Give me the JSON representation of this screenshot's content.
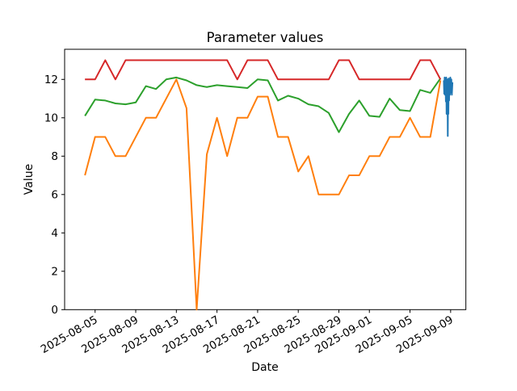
{
  "chart_data": {
    "type": "line",
    "title": "Parameter values",
    "xlabel": "Date",
    "ylabel": "Value",
    "grid": false,
    "legend": "none",
    "background": "#ffffff",
    "spine_color": "#000000",
    "dates": [
      "2025-08-04",
      "2025-08-05",
      "2025-08-06",
      "2025-08-07",
      "2025-08-08",
      "2025-08-09",
      "2025-08-10",
      "2025-08-11",
      "2025-08-12",
      "2025-08-13",
      "2025-08-14",
      "2025-08-15",
      "2025-08-16",
      "2025-08-17",
      "2025-08-18",
      "2025-08-19",
      "2025-08-20",
      "2025-08-21",
      "2025-08-22",
      "2025-08-23",
      "2025-08-24",
      "2025-08-25",
      "2025-08-26",
      "2025-08-27",
      "2025-08-28",
      "2025-08-29",
      "2025-08-30",
      "2025-08-31",
      "2025-09-01",
      "2025-09-02",
      "2025-09-03",
      "2025-09-04",
      "2025-09-05",
      "2025-09-06",
      "2025-09-07",
      "2025-09-08"
    ],
    "series": [
      {
        "name": "green-series",
        "color": "#2ca02c",
        "values": [
          10.1,
          10.95,
          10.9,
          10.75,
          10.7,
          10.8,
          11.65,
          11.5,
          12.0,
          12.1,
          11.95,
          11.7,
          11.6,
          11.7,
          11.65,
          11.6,
          11.55,
          12.0,
          11.95,
          10.9,
          11.15,
          11.0,
          10.7,
          10.6,
          10.25,
          9.25,
          10.2,
          10.9,
          10.1,
          10.05,
          11.0,
          10.4,
          10.35,
          11.45,
          11.3,
          12.05
        ]
      },
      {
        "name": "orange-series",
        "color": "#ff7f0e",
        "values": [
          7.0,
          9.0,
          9.0,
          8.0,
          8.0,
          9.0,
          10.0,
          10.0,
          11.0,
          12.0,
          10.5,
          0.0,
          8.1,
          10.0,
          8.0,
          10.0,
          10.0,
          11.1,
          11.1,
          9.0,
          9.0,
          7.2,
          8.0,
          6.0,
          6.0,
          6.0,
          7.0,
          7.0,
          8.0,
          8.0,
          9.0,
          9.0,
          10.0,
          9.0,
          9.0,
          11.95
        ]
      },
      {
        "name": "red-series",
        "color": "#d62728",
        "values": [
          12,
          12,
          13,
          12,
          13,
          13,
          13,
          13,
          13,
          13,
          13,
          13,
          13,
          13,
          13,
          12,
          13,
          13,
          13,
          12,
          12,
          12,
          12,
          12,
          12,
          13,
          13,
          12,
          12,
          12,
          12,
          12,
          12,
          13,
          13,
          12
        ]
      },
      {
        "name": "blue-series",
        "color": "#1f77b4",
        "points": [
          [
            35.33,
            11.95
          ],
          [
            35.37,
            11.25
          ],
          [
            35.41,
            12.1
          ],
          [
            35.45,
            11.2
          ],
          [
            35.49,
            12.05
          ],
          [
            35.53,
            10.85
          ],
          [
            35.57,
            12.1
          ],
          [
            35.6,
            10.2
          ],
          [
            35.63,
            11.9
          ],
          [
            35.66,
            10.6
          ],
          [
            35.69,
            12.0
          ],
          [
            35.72,
            9.05
          ],
          [
            35.75,
            11.6
          ],
          [
            35.78,
            10.2
          ],
          [
            35.81,
            12.05
          ],
          [
            35.85,
            10.9
          ],
          [
            35.89,
            11.95
          ],
          [
            35.93,
            11.2
          ],
          [
            35.97,
            12.1
          ],
          [
            36.02,
            11.3
          ],
          [
            36.07,
            12.0
          ],
          [
            36.12,
            11.2
          ],
          [
            36.18,
            11.85
          ]
        ]
      }
    ],
    "x_tick_labels": [
      "2025-08-05",
      "2025-08-09",
      "2025-08-13",
      "2025-08-17",
      "2025-08-21",
      "2025-08-25",
      "2025-08-29",
      "2025-09-01",
      "2025-09-05",
      "2025-09-09"
    ],
    "x_tick_days": [
      1,
      5,
      9,
      13,
      17,
      21,
      25,
      28,
      32,
      36
    ],
    "x_tick_rotation_deg": 30,
    "y_ticks": [
      0,
      2,
      4,
      6,
      8,
      10,
      12
    ],
    "xlim_days": [
      -2.0,
      37.5
    ],
    "ylim": [
      0,
      13.57
    ]
  }
}
